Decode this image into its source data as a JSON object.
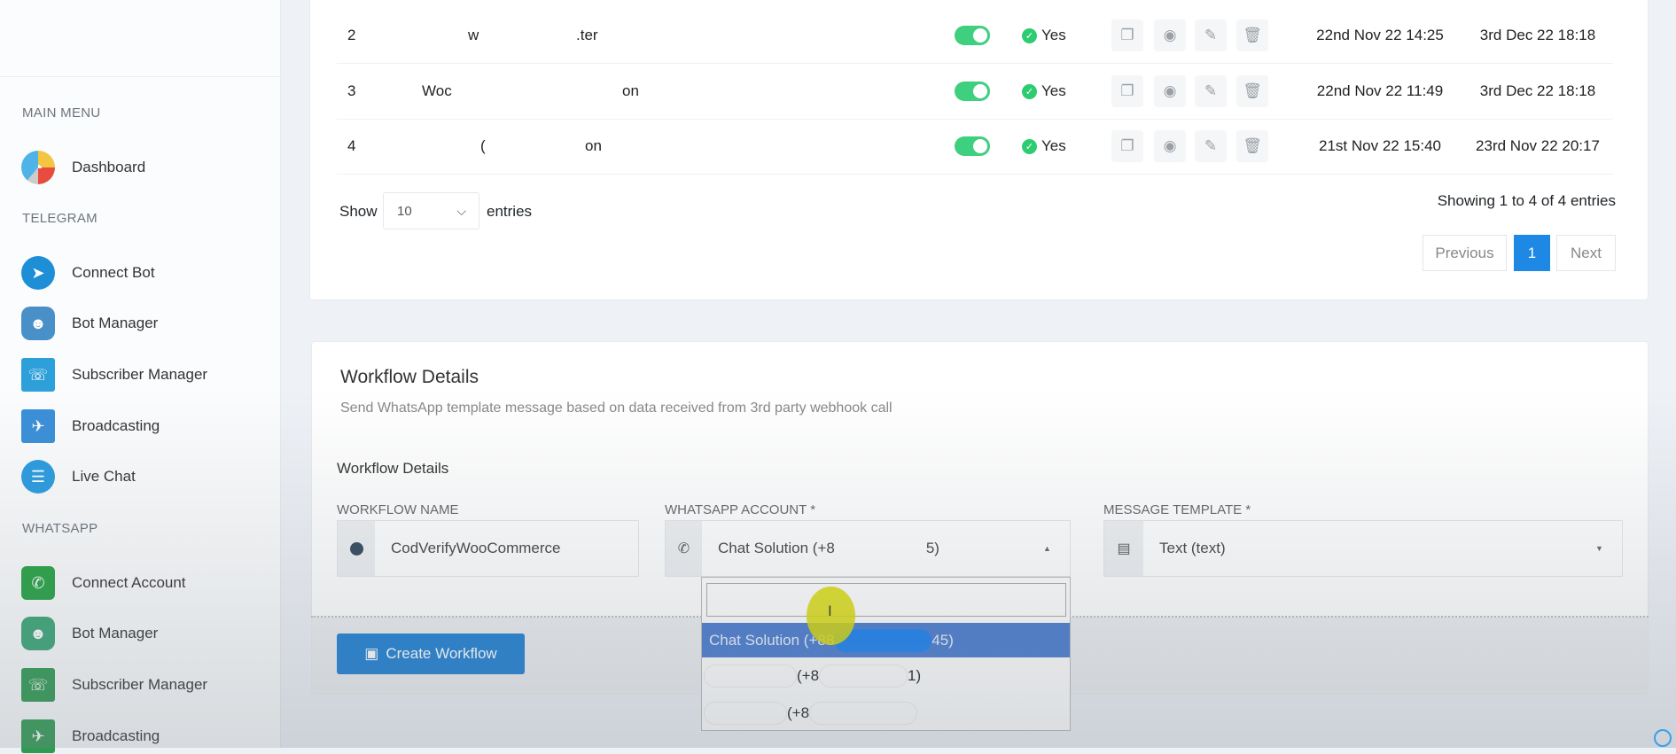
{
  "sidebar": {
    "sections": [
      {
        "heading": "MAIN MENU",
        "items": [
          {
            "label": "Dashboard",
            "icon": "gauge-icon"
          }
        ]
      },
      {
        "heading": "TELEGRAM",
        "items": [
          {
            "label": "Connect Bot",
            "icon": "telegram-icon"
          },
          {
            "label": "Bot Manager",
            "icon": "robot-icon"
          },
          {
            "label": "Subscriber Manager",
            "icon": "subscriber-icon"
          },
          {
            "label": "Broadcasting",
            "icon": "broadcast-icon"
          },
          {
            "label": "Live Chat",
            "icon": "chat-icon"
          }
        ]
      },
      {
        "heading": "WHATSAPP",
        "items": [
          {
            "label": "Connect Account",
            "icon": "whatsapp-icon"
          },
          {
            "label": "Bot Manager",
            "icon": "robot-icon"
          },
          {
            "label": "Subscriber Manager",
            "icon": "subscriber-icon"
          },
          {
            "label": "Broadcasting",
            "icon": "broadcast-icon"
          }
        ]
      }
    ]
  },
  "table": {
    "rows": [
      {
        "num": "2",
        "name_a": "w",
        "name_b": ".ter",
        "active": true,
        "status": "Yes",
        "created": "22nd Nov 22 14:25",
        "updated": "3rd Dec 22 18:18"
      },
      {
        "num": "3",
        "name_a": "Woc",
        "name_b": "on",
        "active": true,
        "status": "Yes",
        "created": "22nd Nov 22 11:49",
        "updated": "3rd Dec 22 18:18"
      },
      {
        "num": "4",
        "name_a": "(",
        "name_b": "on",
        "active": true,
        "status": "Yes",
        "created": "21st Nov 22 15:40",
        "updated": "23rd Nov 22 20:17"
      }
    ],
    "show_label": "Show",
    "entries_value": "10",
    "entries_label": "entries",
    "info": "Showing 1 to 4 of 4 entries",
    "pagination": {
      "previous": "Previous",
      "current": "1",
      "next": "Next"
    }
  },
  "workflow": {
    "title": "Workflow Details",
    "subtitle": "Send WhatsApp template message based on data received from 3rd party webhook call",
    "section": "Workflow Details",
    "name_label": "WORKFLOW NAME",
    "name_value": "CodVerifyWooCommerce",
    "account_label": "WHATSAPP ACCOUNT *",
    "account_value_a": "Chat Solution (+8",
    "account_value_b": "5)",
    "template_label": "MESSAGE TEMPLATE *",
    "template_value": "Text (text)",
    "dropdown": {
      "search": "",
      "options": [
        {
          "a": "Chat Solution (+88",
          "b": "45)",
          "selected": true
        },
        {
          "a": "(+8",
          "b": "1)"
        },
        {
          "a": "(+8",
          "b": ""
        }
      ]
    },
    "create_button": "Create Workflow"
  },
  "colors": {
    "primary": "#1e88e5",
    "toggle": "#3ecf7f",
    "selected": "#4a7cd0"
  }
}
